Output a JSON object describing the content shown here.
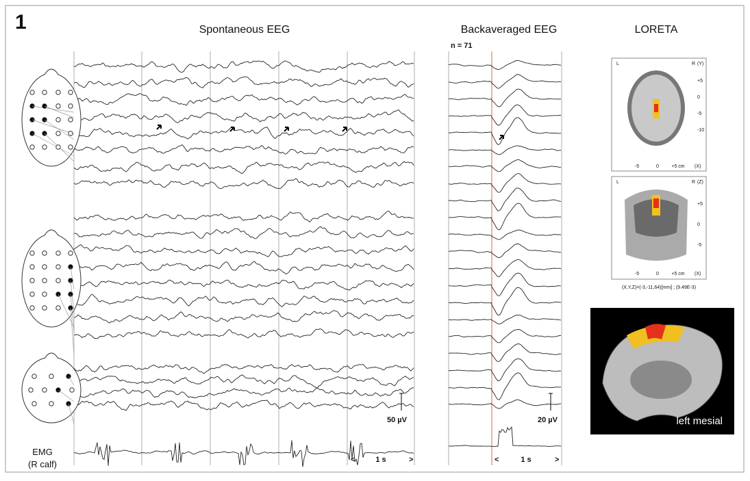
{
  "panel_label": "1",
  "spontaneous": {
    "title": "Spontaneous EEG",
    "scale": "50 µV",
    "emg_label": "EMG",
    "emg_site": "(R calf)",
    "time": "1 s",
    "left": "<",
    "right": ">"
  },
  "backaveraged": {
    "title": "Backaveraged EEG",
    "n": "n = 71",
    "scale": "20 µV",
    "time": "1 s",
    "left": "<",
    "right": ">"
  },
  "loreta": {
    "title": "LORETA",
    "axial": {
      "left": "L",
      "right": "R",
      "axis": "(Y)",
      "ticks": [
        "+5",
        "0",
        "-5",
        "-10"
      ],
      "xticks": [
        "-5",
        "0",
        "+5 cm"
      ],
      "xaxis": "(X)"
    },
    "coronal": {
      "left": "L",
      "right": "R",
      "axis": "(Z)",
      "ticks": [
        "+5",
        "0",
        "-5"
      ],
      "xticks": [
        "-5",
        "0",
        "+5 cm"
      ],
      "xaxis": "(X)"
    },
    "coordinates": "(X,Y,Z)=(-3,-11,64)[mm] ; (9.49E-3)",
    "mesial_label": "left mesial"
  }
}
